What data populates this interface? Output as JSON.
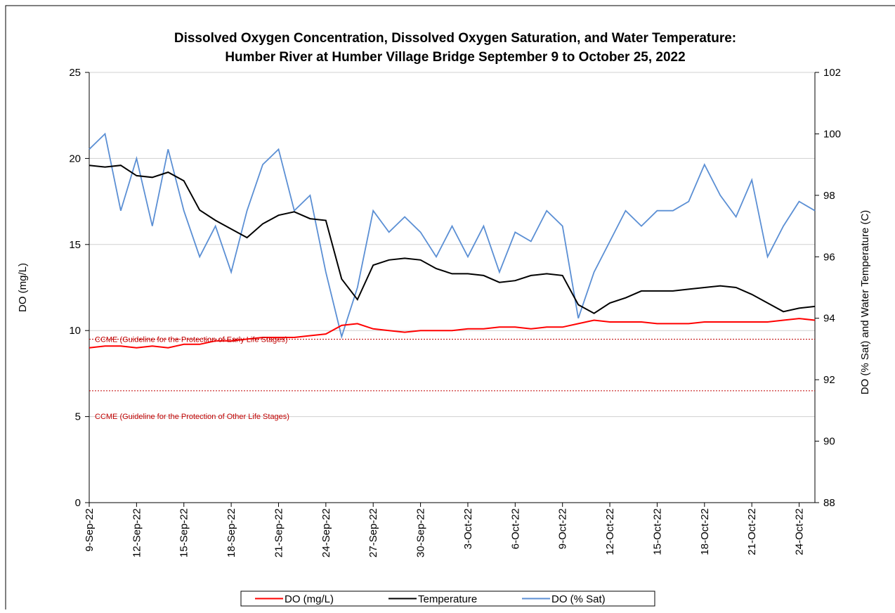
{
  "chart_data": {
    "type": "line",
    "title": [
      "Dissolved Oxygen Concentration, Dissolved Oxygen Saturation, and Water Temperature:",
      "Humber River at Humber Village Bridge September 9 to October 25, 2022"
    ],
    "y_label": "DO (mg/L)",
    "y2_label": "DO (% Sat) and Water Temperature  (C)",
    "x": [
      "2022-09-09",
      "2022-09-10",
      "2022-09-11",
      "2022-09-12",
      "2022-09-13",
      "2022-09-14",
      "2022-09-15",
      "2022-09-16",
      "2022-09-17",
      "2022-09-18",
      "2022-09-19",
      "2022-09-20",
      "2022-09-21",
      "2022-09-22",
      "2022-09-23",
      "2022-09-24",
      "2022-09-25",
      "2022-09-26",
      "2022-09-27",
      "2022-09-28",
      "2022-09-29",
      "2022-09-30",
      "2022-10-01",
      "2022-10-02",
      "2022-10-03",
      "2022-10-04",
      "2022-10-05",
      "2022-10-06",
      "2022-10-07",
      "2022-10-08",
      "2022-10-09",
      "2022-10-10",
      "2022-10-11",
      "2022-10-12",
      "2022-10-13",
      "2022-10-14",
      "2022-10-15",
      "2022-10-16",
      "2022-10-17",
      "2022-10-18",
      "2022-10-19",
      "2022-10-20",
      "2022-10-21",
      "2022-10-22",
      "2022-10-23",
      "2022-10-24",
      "2022-10-25"
    ],
    "xlim": [
      "2022-09-09",
      "2022-10-25"
    ],
    "xticks": [
      {
        "value": "2022-09-09",
        "label": "9-Sep-22"
      },
      {
        "value": "2022-09-12",
        "label": "12-Sep-22"
      },
      {
        "value": "2022-09-15",
        "label": "15-Sep-22"
      },
      {
        "value": "2022-09-18",
        "label": "18-Sep-22"
      },
      {
        "value": "2022-09-21",
        "label": "21-Sep-22"
      },
      {
        "value": "2022-09-24",
        "label": "24-Sep-22"
      },
      {
        "value": "2022-09-27",
        "label": "27-Sep-22"
      },
      {
        "value": "2022-09-30",
        "label": "30-Sep-22"
      },
      {
        "value": "2022-10-03",
        "label": "3-Oct-22"
      },
      {
        "value": "2022-10-06",
        "label": "6-Oct-22"
      },
      {
        "value": "2022-10-09",
        "label": "9-Oct-22"
      },
      {
        "value": "2022-10-12",
        "label": "12-Oct-22"
      },
      {
        "value": "2022-10-15",
        "label": "15-Oct-22"
      },
      {
        "value": "2022-10-18",
        "label": "18-Oct-22"
      },
      {
        "value": "2022-10-21",
        "label": "21-Oct-22"
      },
      {
        "value": "2022-10-24",
        "label": "24-Oct-22"
      }
    ],
    "ylim": [
      0,
      25
    ],
    "yticks": [
      0,
      5,
      10,
      15,
      20,
      25
    ],
    "y2lim": [
      88,
      102
    ],
    "y2ticks": [
      88,
      90,
      92,
      94,
      96,
      98,
      100,
      102
    ],
    "grid": true,
    "legend": "bottom",
    "series": [
      {
        "name": "DO (mg/L)",
        "color": "#ff0000",
        "values": [
          9.0,
          9.1,
          9.1,
          9.0,
          9.1,
          9.0,
          9.2,
          9.2,
          9.4,
          9.4,
          9.5,
          9.6,
          9.6,
          9.6,
          9.7,
          9.8,
          10.3,
          10.4,
          10.1,
          10.0,
          9.9,
          10.0,
          10.0,
          10.0,
          10.1,
          10.1,
          10.2,
          10.2,
          10.1,
          10.2,
          10.2,
          10.4,
          10.6,
          10.5,
          10.5,
          10.5,
          10.4,
          10.4,
          10.4,
          10.5,
          10.5,
          10.5,
          10.5,
          10.5,
          10.6,
          10.7,
          10.6
        ]
      },
      {
        "name": "Temperature",
        "color": "#000000",
        "values": [
          19.6,
          19.5,
          19.6,
          19.0,
          18.9,
          19.2,
          18.7,
          17.0,
          16.4,
          15.9,
          15.4,
          16.2,
          16.7,
          16.9,
          16.5,
          16.4,
          13.0,
          11.8,
          13.8,
          14.1,
          14.2,
          14.1,
          13.6,
          13.3,
          13.3,
          13.2,
          12.8,
          12.9,
          13.2,
          13.3,
          13.2,
          11.5,
          11.0,
          11.6,
          11.9,
          12.3,
          12.3,
          12.3,
          12.4,
          12.5,
          12.6,
          12.5,
          12.1,
          11.6,
          11.1,
          11.3,
          11.4
        ]
      },
      {
        "name": "DO (% Sat)",
        "color": "#5b8fd4",
        "axis": "y2",
        "values": [
          99.5,
          100.0,
          97.5,
          99.2,
          97.0,
          99.5,
          97.5,
          96.0,
          97.0,
          95.5,
          97.5,
          99.0,
          99.5,
          97.5,
          98.0,
          95.5,
          93.4,
          95.0,
          97.5,
          96.8,
          97.3,
          96.8,
          96.0,
          97.0,
          96.0,
          97.0,
          95.5,
          96.8,
          96.5,
          97.5,
          97.0,
          94.0,
          95.5,
          96.5,
          97.5,
          97.0,
          97.5,
          97.5,
          97.8,
          99.0,
          98.0,
          97.3,
          98.5,
          96.0,
          97.0,
          97.8,
          97.5
        ]
      }
    ],
    "reference_lines": [
      {
        "value": 9.5,
        "label": "CCME (Guideline for the Protection of Early Life Stages)",
        "color": "#c00000"
      },
      {
        "value": 6.5,
        "label": "CCME (Guideline for the Protection of Other Life Stages)",
        "color": "#c00000"
      }
    ]
  }
}
